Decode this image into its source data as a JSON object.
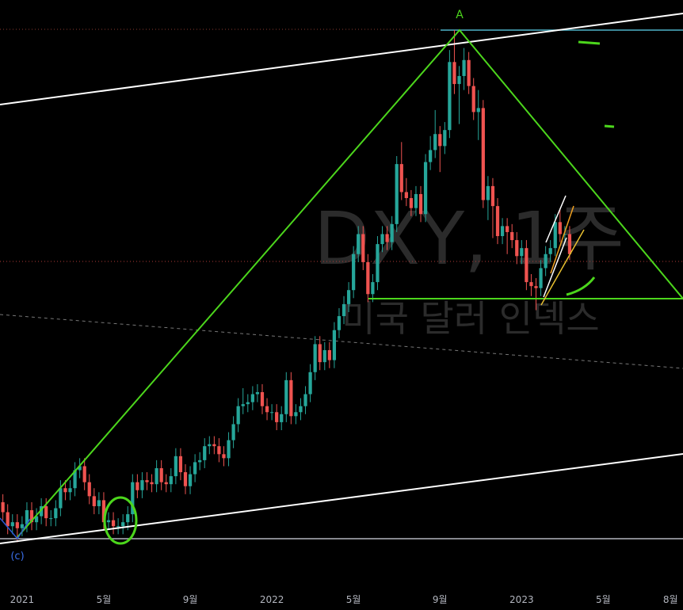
{
  "chart_data": {
    "type": "candlestick",
    "watermark_title": "DXY, 1주",
    "watermark_subtitle": "미국 달러 인덱스",
    "annotations": [
      "A",
      "(c)"
    ],
    "up_color": "#26a69a",
    "down_color": "#ef5350",
    "xlim": [
      -0.6,
      141.6
    ],
    "xticks": [
      {
        "value": 4,
        "label": "2021"
      },
      {
        "value": 21,
        "label": "5월"
      },
      {
        "value": 39,
        "label": "9월"
      },
      {
        "value": 56,
        "label": "2022"
      },
      {
        "value": 73,
        "label": "5월"
      },
      {
        "value": 91,
        "label": "9월"
      },
      {
        "value": 108,
        "label": "2023"
      },
      {
        "value": 125,
        "label": "5월"
      },
      {
        "value": 139,
        "label": "8월"
      }
    ],
    "ylim": [
      87,
      116.3
    ],
    "open": [
      91.2,
      90.7,
      90.0,
      90.2,
      89.9,
      90.1,
      90.8,
      90.2,
      90.5,
      91.0,
      90.4,
      90.4,
      90.9,
      91.9,
      91.7,
      91.9,
      92.8,
      93.0,
      92.2,
      91.5,
      91.0,
      91.3,
      90.2,
      90.3,
      90.0,
      90.0,
      90.2,
      90.6,
      92.2,
      91.8,
      92.3,
      92.2,
      92.1,
      92.9,
      92.2,
      92.1,
      92.5,
      93.5,
      92.7,
      92.0,
      92.6,
      93.2,
      93.3,
      94.0,
      94.1,
      94.0,
      93.6,
      93.4,
      94.3,
      95.1,
      96.0,
      96.1,
      96.2,
      96.6,
      96.7,
      96.0,
      95.7,
      95.7,
      95.2,
      95.6,
      97.3,
      95.5,
      95.7,
      96.0,
      96.6,
      97.7,
      99.1,
      98.2,
      98.8,
      98.3,
      99.8,
      100.5,
      101.1,
      101.8,
      103.6,
      104.6,
      103.2,
      101.6,
      102.2,
      104.1,
      104.6,
      104.2,
      105.1,
      108.1,
      106.7,
      106.4,
      105.9,
      106.6,
      105.6,
      108.2,
      108.8,
      109.6,
      109.0,
      109.8,
      113.2,
      112.1,
      112.5,
      113.3,
      112.0,
      110.7,
      110.9,
      106.3,
      107.0,
      106.0,
      104.5,
      105.0,
      104.7,
      104.3,
      103.5,
      103.9,
      102.2,
      102.0,
      101.9,
      102.9,
      103.6,
      103.9,
      105.2,
      104.6,
      104.6
    ],
    "high": [
      91.6,
      91.1,
      90.6,
      90.6,
      90.5,
      91.2,
      91.2,
      90.9,
      91.4,
      91.4,
      90.8,
      91.3,
      92.3,
      92.3,
      92.3,
      93.2,
      93.4,
      93.4,
      92.6,
      91.9,
      91.7,
      91.7,
      90.7,
      90.7,
      90.4,
      90.6,
      91.0,
      92.6,
      92.6,
      92.7,
      92.7,
      92.6,
      93.3,
      93.3,
      92.6,
      92.9,
      93.9,
      93.9,
      93.1,
      93.0,
      93.6,
      93.7,
      94.4,
      94.5,
      94.5,
      94.4,
      94.0,
      94.7,
      95.5,
      96.4,
      96.9,
      96.6,
      97.0,
      97.1,
      97.1,
      96.4,
      96.1,
      96.1,
      96.0,
      97.7,
      97.7,
      96.1,
      96.4,
      97.0,
      98.1,
      99.5,
      99.5,
      99.2,
      99.2,
      100.2,
      100.9,
      101.5,
      102.2,
      104.0,
      105.0,
      105.0,
      103.6,
      102.6,
      104.5,
      105.0,
      105.0,
      105.5,
      108.5,
      109.2,
      107.4,
      106.8,
      107.0,
      107.0,
      108.6,
      109.5,
      110.8,
      110.0,
      110.2,
      113.8,
      114.8,
      113.0,
      113.9,
      113.7,
      112.4,
      111.8,
      111.3,
      107.5,
      107.4,
      106.4,
      105.4,
      105.4,
      105.1,
      104.7,
      104.3,
      104.3,
      102.6,
      102.4,
      103.3,
      104.0,
      104.3,
      105.6,
      105.9,
      105.0,
      105.0
    ],
    "low": [
      90.3,
      89.6,
      89.6,
      89.2,
      89.5,
      89.7,
      89.8,
      89.8,
      90.1,
      90.0,
      90.0,
      90.0,
      90.5,
      91.3,
      91.3,
      91.5,
      92.4,
      91.8,
      91.1,
      90.6,
      90.6,
      89.8,
      89.8,
      89.6,
      89.6,
      89.6,
      89.8,
      90.2,
      91.4,
      91.4,
      91.8,
      91.7,
      91.7,
      91.8,
      91.7,
      91.7,
      92.1,
      92.3,
      91.6,
      91.6,
      92.2,
      92.8,
      92.9,
      93.6,
      93.6,
      93.2,
      93.0,
      93.0,
      93.9,
      94.7,
      95.6,
      95.7,
      95.8,
      96.2,
      95.6,
      95.3,
      95.3,
      94.8,
      94.8,
      95.2,
      95.1,
      95.1,
      95.3,
      95.6,
      96.2,
      97.3,
      97.8,
      97.8,
      97.9,
      97.9,
      99.4,
      100.1,
      100.7,
      101.4,
      103.2,
      102.8,
      101.2,
      101.2,
      101.8,
      103.7,
      103.8,
      103.8,
      104.7,
      106.3,
      106.0,
      105.5,
      105.5,
      105.2,
      105.2,
      107.8,
      108.4,
      107.7,
      108.6,
      109.4,
      111.6,
      110.1,
      111.8,
      111.6,
      110.3,
      109.3,
      105.9,
      105.3,
      104.4,
      104.1,
      104.1,
      103.6,
      103.9,
      103.1,
      103.1,
      101.8,
      101.5,
      100.8,
      101.5,
      102.5,
      103.2,
      103.5,
      104.2,
      104.2,
      103.3
    ],
    "close": [
      90.7,
      90.0,
      90.2,
      89.9,
      90.1,
      90.8,
      90.2,
      90.5,
      91.0,
      90.4,
      90.4,
      90.9,
      91.9,
      91.7,
      91.9,
      92.8,
      93.0,
      92.2,
      91.5,
      91.0,
      91.3,
      90.2,
      90.3,
      90.0,
      90.0,
      90.2,
      90.6,
      92.2,
      91.8,
      92.3,
      92.2,
      92.1,
      92.9,
      92.2,
      92.1,
      92.5,
      93.5,
      92.7,
      92.0,
      92.6,
      93.2,
      93.3,
      94.0,
      94.1,
      94.0,
      93.6,
      93.4,
      94.3,
      95.1,
      96.0,
      96.1,
      96.2,
      96.6,
      96.7,
      96.0,
      95.7,
      95.7,
      95.2,
      95.6,
      97.3,
      95.5,
      95.7,
      96.0,
      96.6,
      97.7,
      99.1,
      98.2,
      98.8,
      98.3,
      99.8,
      100.5,
      101.1,
      101.8,
      103.6,
      104.6,
      103.2,
      101.6,
      102.2,
      104.1,
      104.6,
      104.2,
      105.1,
      108.1,
      106.7,
      106.4,
      105.9,
      106.6,
      105.6,
      108.2,
      108.8,
      109.6,
      109.0,
      109.8,
      113.2,
      112.1,
      112.5,
      113.3,
      112.0,
      110.7,
      110.9,
      106.3,
      107.0,
      106.0,
      104.5,
      105.0,
      104.7,
      104.3,
      103.5,
      103.9,
      102.2,
      102.0,
      101.9,
      102.9,
      103.6,
      103.9,
      105.2,
      104.6,
      104.6,
      103.6
    ]
  }
}
